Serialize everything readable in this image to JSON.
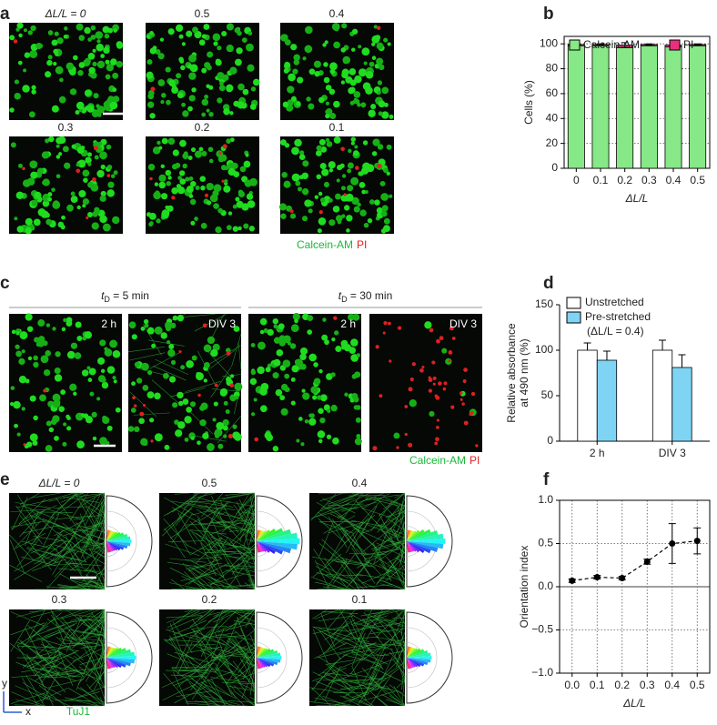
{
  "figure": {
    "panel_labels": [
      "a",
      "b",
      "c",
      "d",
      "e",
      "f"
    ],
    "a_captions": [
      "ΔL/L = 0",
      "0.5",
      "0.4",
      "0.3",
      "0.2",
      "0.1"
    ],
    "a_stain": [
      "Calcein-AM",
      "PI"
    ],
    "c_groups": [
      {
        "var": "t",
        "sub": "D",
        "text": " = 5 min"
      },
      {
        "var": "t",
        "sub": "D",
        "text": " = 30 min"
      }
    ],
    "c_captions": [
      "2 h",
      "DIV 3",
      "2 h",
      "DIV 3"
    ],
    "c_stain": [
      "Calcein-AM",
      "PI"
    ],
    "e_captions": [
      "ΔL/L = 0",
      "0.5",
      "0.4",
      "0.3",
      "0.2",
      "0.1"
    ],
    "e_stain": "TuJ1",
    "e_axes": [
      "y",
      "x"
    ]
  },
  "chart_data": [
    {
      "type": "bar",
      "stacked": true,
      "categories": [
        "0",
        "0.1",
        "0.2",
        "0.3",
        "0.4",
        "0.5"
      ],
      "series": [
        {
          "name": "Calcein-AM",
          "color": "#86e886",
          "values": [
            98.5,
            98.5,
            97,
            98.5,
            97.5,
            98.5
          ]
        },
        {
          "name": "PI",
          "color": "#e8307e",
          "values": [
            1,
            1,
            2,
            1,
            1.5,
            1
          ],
          "errors": [
            0.5,
            0.5,
            2,
            0.5,
            2,
            0.5
          ]
        }
      ],
      "ylim": [
        0,
        106
      ],
      "yticks": [
        0,
        20,
        40,
        60,
        80,
        100
      ],
      "grid": "horizontal",
      "frame": true,
      "xlabel": "ΔL/L",
      "ylabel": [
        "Cells (%)"
      ],
      "legend": "top"
    },
    {
      "type": "bar",
      "stacked": false,
      "categories": [
        "2 h",
        "DIV 3"
      ],
      "series": [
        {
          "name": "Unstretched",
          "color": "#ffffff",
          "values": [
            100,
            100
          ],
          "errors": [
            8,
            11
          ]
        },
        {
          "name": "Pre-stretched",
          "note": "(ΔL/L = 0.4)",
          "color": "#7fd4f4",
          "values": [
            89,
            81
          ],
          "errors": [
            10,
            14
          ]
        }
      ],
      "ylim": [
        0,
        150
      ],
      "yticks": [
        0,
        50,
        100,
        150
      ],
      "grid": "none",
      "frame": false,
      "ylabel": [
        "Relative absorbance",
        "at 490 nm (%)"
      ],
      "legend": "upper left"
    },
    {
      "type": "line",
      "x": [
        0,
        0.1,
        0.2,
        0.3,
        0.4,
        0.5
      ],
      "series": [
        {
          "name": "Orientation index",
          "color": "#000000",
          "values": [
            0.07,
            0.11,
            0.1,
            0.29,
            0.5,
            0.53
          ],
          "errors": [
            0.02,
            0.02,
            0.02,
            0.03,
            0.23,
            0.15
          ]
        }
      ],
      "xlim": [
        -0.05,
        0.55
      ],
      "xticks": [
        {
          "value": 0,
          "label": "0.0"
        },
        0.1,
        0.2,
        0.3,
        0.4,
        0.5
      ],
      "ylim": [
        -1,
        1
      ],
      "yticks": [
        {
          "value": -1,
          "label": "−1.0"
        },
        {
          "value": -0.5,
          "label": "−0.5"
        },
        {
          "value": 0,
          "label": "0.0"
        },
        0.5,
        {
          "value": 1,
          "label": "1.0"
        }
      ],
      "grid": "both",
      "frame": true,
      "xlabel": "ΔL/L",
      "ylabel": [
        "Orientation index"
      ],
      "legend": "none"
    }
  ]
}
